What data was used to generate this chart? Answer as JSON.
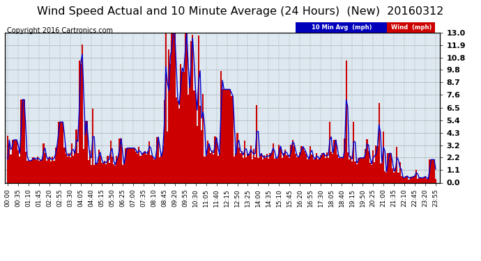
{
  "title": "Wind Speed Actual and 10 Minute Average (24 Hours)  (New)  20160312",
  "copyright": "Copyright 2016 Cartronics.com",
  "ylabel_right_ticks": [
    0.0,
    1.1,
    2.2,
    3.2,
    4.3,
    5.4,
    6.5,
    7.6,
    8.7,
    9.8,
    10.8,
    11.9,
    13.0
  ],
  "ymin": 0.0,
  "ymax": 13.0,
  "legend_10min_label": "10 Min Avg  (mph)",
  "legend_wind_label": "Wind  (mph)",
  "legend_10min_bg": "#0000bb",
  "legend_wind_bg": "#cc0000",
  "bar_color": "#cc0000",
  "line_color": "#0000cc",
  "grid_color": "#999999",
  "bg_color": "#ffffff",
  "plot_bg_color": "#dde8f0",
  "title_fontsize": 11.5,
  "copyright_fontsize": 7,
  "tick_fontsize": 6.5,
  "ytick_fontsize": 8,
  "n_points": 288,
  "seed": 42
}
